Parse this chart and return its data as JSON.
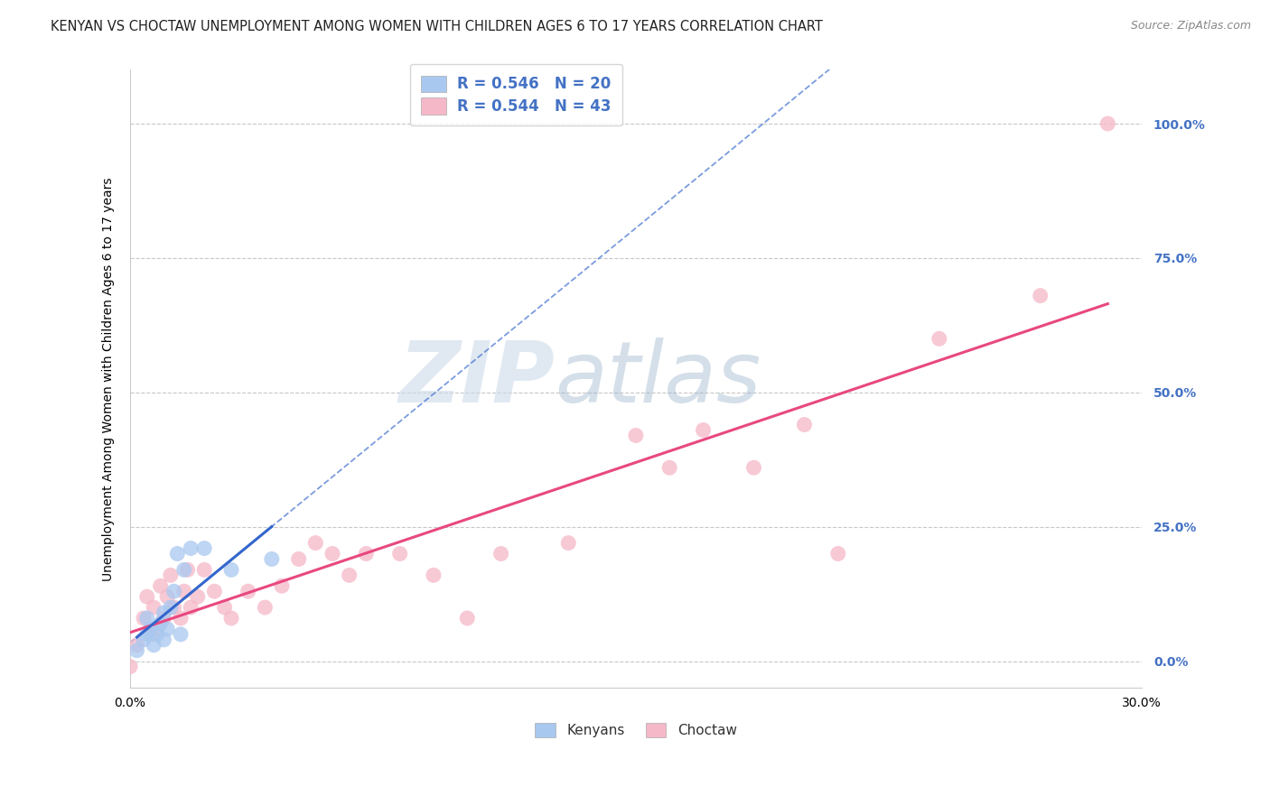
{
  "title": "KENYAN VS CHOCTAW UNEMPLOYMENT AMONG WOMEN WITH CHILDREN AGES 6 TO 17 YEARS CORRELATION CHART",
  "source": "Source: ZipAtlas.com",
  "ylabel": "Unemployment Among Women with Children Ages 6 to 17 years",
  "xlabel": "",
  "watermark_zip": "ZIP",
  "watermark_atlas": "atlas",
  "xlim": [
    0.0,
    0.3
  ],
  "ylim": [
    -0.05,
    1.1
  ],
  "yticks": [
    0.0,
    0.25,
    0.5,
    0.75,
    1.0
  ],
  "ytick_labels": [
    "0.0%",
    "25.0%",
    "50.0%",
    "75.0%",
    "100.0%"
  ],
  "xticks": [
    0.0,
    0.05,
    0.1,
    0.15,
    0.2,
    0.25,
    0.3
  ],
  "xtick_labels": [
    "0.0%",
    "",
    "",
    "",
    "",
    "",
    "30.0%"
  ],
  "kenyan_color": "#a8c8f0",
  "choctaw_color": "#f5b8c8",
  "kenyan_line_color": "#3366cc",
  "choctaw_line_color": "#e84880",
  "kenyan_R": 0.546,
  "kenyan_N": 20,
  "choctaw_R": 0.544,
  "choctaw_N": 43,
  "kenyan_x": [
    0.002,
    0.004,
    0.005,
    0.005,
    0.006,
    0.007,
    0.008,
    0.009,
    0.01,
    0.01,
    0.011,
    0.012,
    0.013,
    0.014,
    0.015,
    0.016,
    0.018,
    0.022,
    0.03,
    0.042
  ],
  "kenyan_y": [
    0.02,
    0.04,
    0.05,
    0.08,
    0.06,
    0.03,
    0.05,
    0.07,
    0.04,
    0.09,
    0.06,
    0.1,
    0.13,
    0.2,
    0.05,
    0.17,
    0.21,
    0.21,
    0.17,
    0.19
  ],
  "choctaw_x": [
    0.0,
    0.002,
    0.004,
    0.005,
    0.006,
    0.007,
    0.008,
    0.009,
    0.01,
    0.011,
    0.012,
    0.013,
    0.015,
    0.016,
    0.017,
    0.018,
    0.02,
    0.022,
    0.025,
    0.028,
    0.03,
    0.035,
    0.04,
    0.045,
    0.05,
    0.055,
    0.06,
    0.065,
    0.07,
    0.08,
    0.09,
    0.1,
    0.11,
    0.13,
    0.15,
    0.16,
    0.17,
    0.185,
    0.2,
    0.21,
    0.24,
    0.27,
    0.29
  ],
  "choctaw_y": [
    -0.01,
    0.03,
    0.08,
    0.12,
    0.05,
    0.1,
    0.06,
    0.14,
    0.08,
    0.12,
    0.16,
    0.1,
    0.08,
    0.13,
    0.17,
    0.1,
    0.12,
    0.17,
    0.13,
    0.1,
    0.08,
    0.13,
    0.1,
    0.14,
    0.19,
    0.22,
    0.2,
    0.16,
    0.2,
    0.2,
    0.16,
    0.08,
    0.2,
    0.22,
    0.42,
    0.36,
    0.43,
    0.36,
    0.44,
    0.2,
    0.6,
    0.68,
    1.0
  ],
  "background_color": "#ffffff",
  "grid_color": "#c8c8c8",
  "title_fontsize": 10.5,
  "axis_label_fontsize": 10,
  "tick_fontsize": 10,
  "legend_fontsize": 11
}
